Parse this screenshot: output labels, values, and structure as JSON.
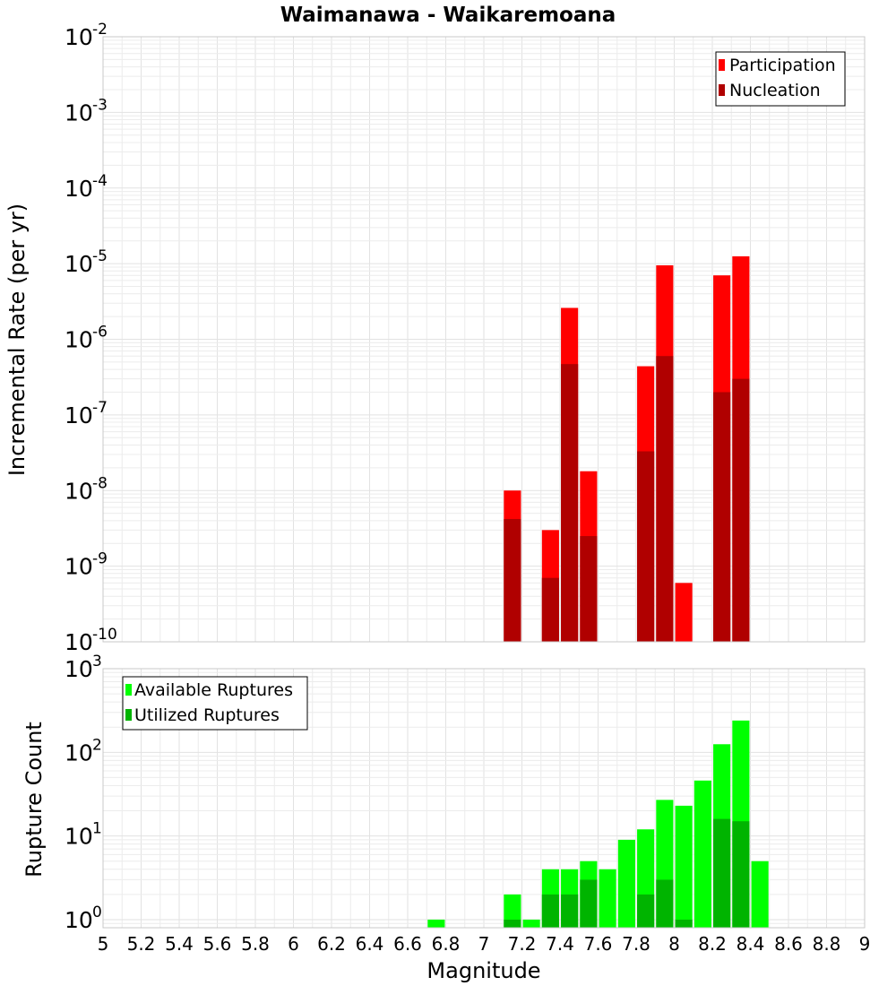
{
  "chart_data": [
    {
      "type": "bar",
      "title": "Waimanawa - Waikaremoana",
      "xlabel": "Magnitude",
      "ylabel": "Incremental Rate (per yr)",
      "yscale": "log",
      "ylim": [
        1e-10,
        0.01
      ],
      "xlim": [
        5,
        9
      ],
      "grid": true,
      "legend_position": "top-right",
      "series": [
        {
          "name": "Participation",
          "color": "#ff0000",
          "x": [
            7.15,
            7.35,
            7.45,
            7.55,
            7.85,
            7.95,
            8.05,
            8.25,
            8.35
          ],
          "values": [
            1e-08,
            3e-09,
            2.6e-06,
            1.8e-08,
            4.4e-07,
            9.5e-06,
            6e-10,
            7e-06,
            1.25e-05
          ]
        },
        {
          "name": "Nucleation",
          "color": "#b00000",
          "x": [
            7.15,
            7.35,
            7.45,
            7.55,
            7.85,
            7.95,
            8.25,
            8.35
          ],
          "values": [
            4.2e-09,
            7e-10,
            4.7e-07,
            2.5e-09,
            3.3e-08,
            6e-07,
            2e-07,
            3e-07
          ]
        }
      ]
    },
    {
      "type": "bar",
      "ylabel": "Rupture Count",
      "xlabel": "Magnitude",
      "yscale": "log",
      "ylim": [
        0.8,
        1000
      ],
      "xlim": [
        5,
        9
      ],
      "xticks": [
        "5",
        "5.2",
        "5.4",
        "5.6",
        "5.8",
        "6",
        "6.2",
        "6.4",
        "6.6",
        "6.8",
        "7",
        "7.2",
        "7.4",
        "7.6",
        "7.8",
        "8",
        "8.2",
        "8.4",
        "8.6",
        "8.8",
        "9"
      ],
      "grid": true,
      "legend_position": "top-left",
      "series": [
        {
          "name": "Available Ruptures",
          "color": "#00ff00",
          "x": [
            6.75,
            7.15,
            7.25,
            7.35,
            7.45,
            7.55,
            7.65,
            7.75,
            7.85,
            7.95,
            8.05,
            8.15,
            8.25,
            8.35,
            8.45
          ],
          "values": [
            1,
            2,
            1,
            4,
            4,
            5,
            4,
            9,
            12,
            27,
            23,
            46,
            125,
            240,
            5
          ]
        },
        {
          "name": "Utilized Ruptures",
          "color": "#00b400",
          "x": [
            7.15,
            7.35,
            7.45,
            7.55,
            7.85,
            7.95,
            8.05,
            8.25,
            8.35
          ],
          "values": [
            1,
            2,
            2,
            3,
            2,
            3,
            1,
            16,
            15
          ]
        }
      ]
    }
  ]
}
